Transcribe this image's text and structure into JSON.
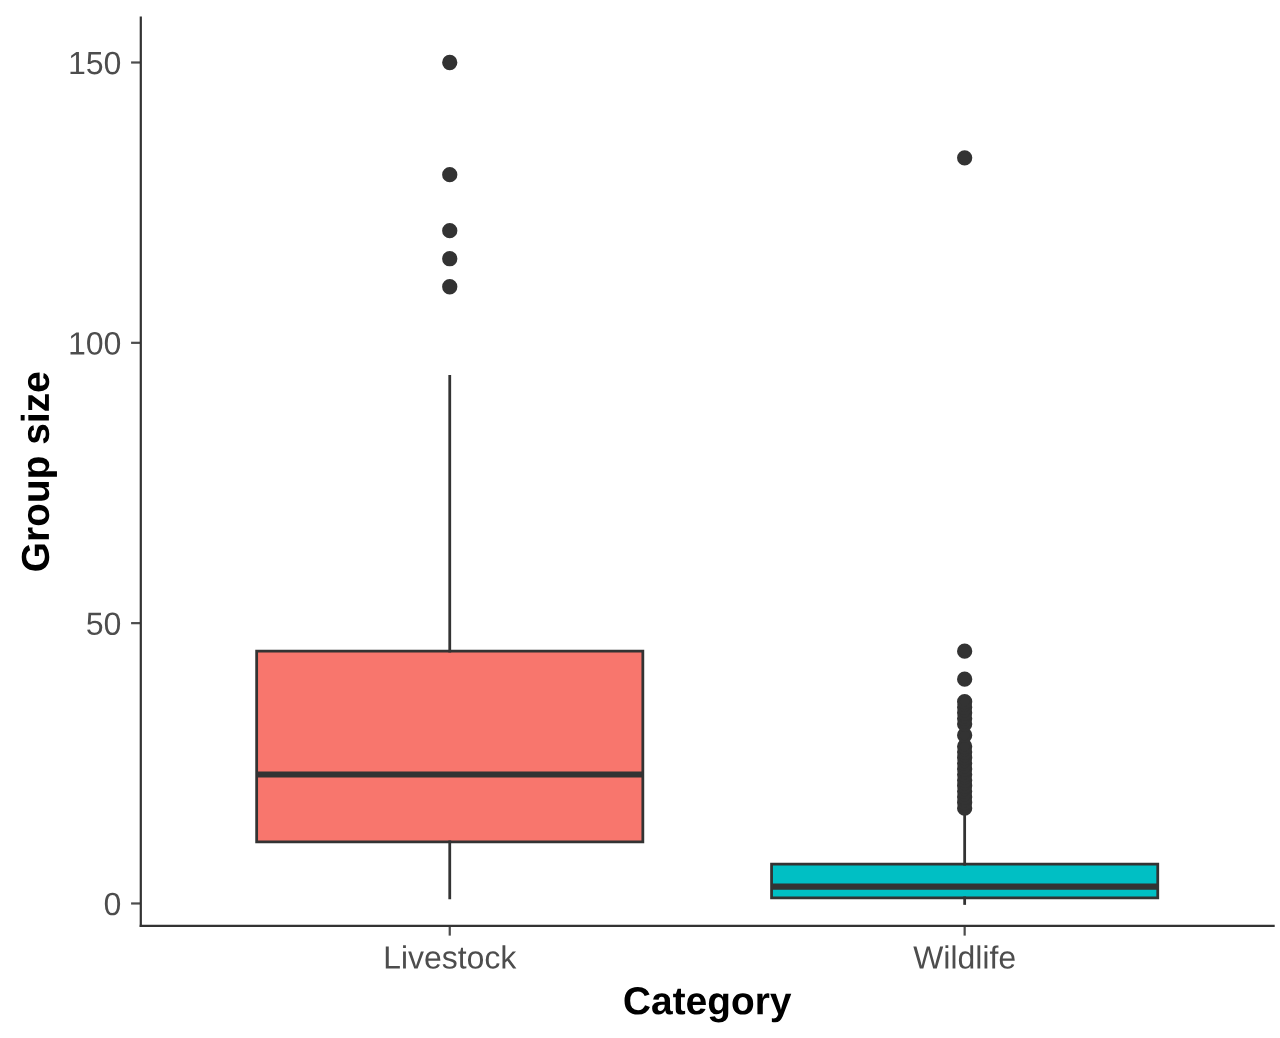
{
  "chart_data": {
    "type": "box",
    "xlabel": "Category",
    "ylabel": "Group size",
    "categories": [
      "Livestock",
      "Wildlife"
    ],
    "colors": [
      "#f8766d",
      "#00bfc4"
    ],
    "boxes": [
      {
        "low": 1,
        "q1": 11,
        "median": 23,
        "q3": 45,
        "high": 94,
        "outliers": [
          110,
          115,
          120,
          130,
          150
        ]
      },
      {
        "low": 0,
        "q1": 1,
        "median": 3,
        "q3": 7,
        "high": 16,
        "outliers": [
          17,
          18,
          19,
          20,
          21,
          22,
          23,
          24,
          25,
          26,
          27,
          28,
          30,
          32,
          33,
          34,
          35,
          36,
          40,
          45,
          133
        ]
      }
    ],
    "ylim": [
      -4,
      158
    ],
    "yticks": [
      0,
      50,
      100,
      150
    ],
    "grid": false,
    "legend": false
  }
}
